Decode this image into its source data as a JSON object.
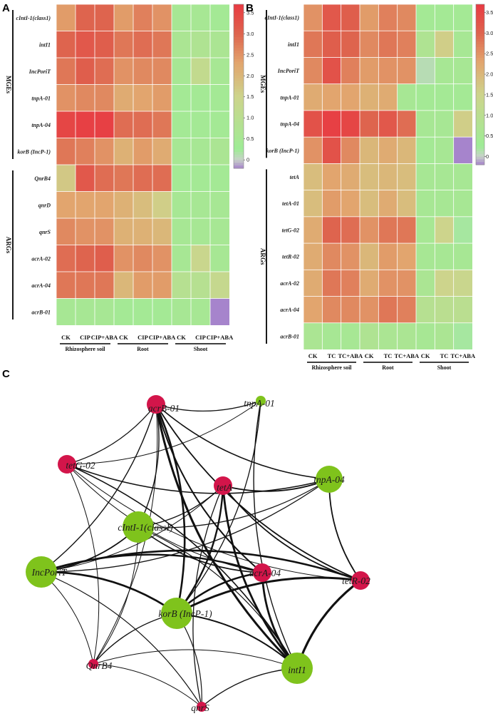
{
  "chart_data": [
    {
      "type": "heatmap",
      "panel_label": "A",
      "rows": [
        "cIntI-1(class1)",
        "intI1",
        "IncPoriT",
        "tnpA-01",
        "tnpA-04",
        "korB (IncP-1)",
        "QnrB4",
        "qnrD",
        "qnrS",
        "acrA-02",
        "acrA-04",
        "acrB-01"
      ],
      "columns": [
        "CK",
        "CIP",
        "CIP+ABA",
        "CK",
        "CIP",
        "CIP+ABA",
        "CK",
        "CIP",
        "CIP+ABA"
      ],
      "column_groups": [
        {
          "label": "Rhizosphere soil",
          "span": 3
        },
        {
          "label": "Root",
          "span": 3
        },
        {
          "label": "Shoot",
          "span": 3
        }
      ],
      "row_groups": [
        {
          "label": "MGEs",
          "span": 6
        },
        {
          "label": "ARGs",
          "span": 6
        }
      ],
      "values": [
        [
          2.4,
          3.0,
          3.0,
          2.4,
          2.7,
          2.5,
          0.5,
          0.5,
          0.4
        ],
        [
          3.0,
          3.2,
          3.1,
          2.8,
          2.9,
          2.8,
          0.6,
          0.7,
          0.6
        ],
        [
          2.8,
          3.1,
          2.9,
          2.5,
          2.6,
          2.6,
          0.5,
          1.2,
          0.5
        ],
        [
          2.5,
          2.6,
          2.6,
          2.2,
          2.3,
          2.4,
          0.4,
          0.4,
          0.4
        ],
        [
          3.5,
          3.6,
          3.6,
          2.9,
          2.9,
          2.8,
          0.4,
          0.4,
          0.4
        ],
        [
          2.8,
          2.7,
          2.5,
          2.1,
          2.4,
          2.2,
          0.5,
          0.5,
          0.6
        ],
        [
          1.7,
          3.2,
          2.9,
          2.8,
          2.9,
          2.9,
          0.4,
          0.4,
          0.4
        ],
        [
          2.3,
          2.3,
          2.3,
          2.1,
          1.9,
          1.6,
          0.5,
          0.5,
          0.5
        ],
        [
          2.6,
          2.5,
          2.5,
          2.1,
          2.1,
          2.0,
          0.5,
          0.5,
          0.5
        ],
        [
          2.9,
          3.0,
          3.1,
          2.5,
          2.6,
          2.5,
          0.5,
          1.4,
          0.5
        ],
        [
          2.8,
          2.8,
          2.8,
          2.0,
          2.4,
          2.4,
          0.9,
          0.9,
          1.3
        ],
        [
          0.5,
          0.5,
          0.5,
          0.4,
          0.4,
          0.4,
          0.5,
          0.5,
          -0.2
        ]
      ],
      "colorbar": {
        "min": -0.2,
        "max": 3.7,
        "ticks": [
          0,
          0.5,
          1.0,
          1.5,
          2.0,
          2.5,
          3.0,
          3.5
        ],
        "tick_labels": [
          "0",
          "0.5",
          "1.0",
          "1.5",
          "2.0",
          "2.5",
          "3.0",
          "3.5"
        ]
      }
    },
    {
      "type": "heatmap",
      "panel_label": "B",
      "rows": [
        "cIntI-1(class1)",
        "intI1",
        "IncPoriT",
        "tnpA-01",
        "tnpA-04",
        "korB (IncP-1)",
        "tetA",
        "tetA-01",
        "tetG-02",
        "tetR-02",
        "acrA-02",
        "acrA-04",
        "acrB-01"
      ],
      "columns": [
        "CK",
        "TC",
        "TC+ABA",
        "CK",
        "TC",
        "TC+ABA",
        "CK",
        "TC",
        "TC+ABA"
      ],
      "column_groups": [
        {
          "label": "Rhizosphere soil",
          "span": 3
        },
        {
          "label": "Root",
          "span": 3
        },
        {
          "label": "Shoot",
          "span": 3
        }
      ],
      "row_groups": [
        {
          "label": "MGEs",
          "span": 6
        },
        {
          "label": "ARGs",
          "span": 7
        }
      ],
      "values": [
        [
          2.5,
          3.2,
          3.1,
          2.4,
          2.7,
          2.6,
          0.4,
          0.4,
          0.4
        ],
        [
          2.8,
          3.1,
          3.0,
          2.6,
          2.8,
          2.7,
          0.7,
          1.6,
          0.5
        ],
        [
          2.6,
          3.3,
          2.7,
          2.4,
          2.5,
          2.5,
          0.1,
          0.5,
          0.5
        ],
        [
          2.2,
          2.3,
          2.3,
          2.1,
          2.2,
          0.5,
          0.4,
          0.4,
          0.4
        ],
        [
          3.3,
          3.6,
          3.5,
          3.0,
          3.2,
          2.9,
          0.5,
          0.5,
          1.6
        ],
        [
          2.5,
          3.3,
          2.6,
          2.0,
          2.2,
          2.0,
          0.4,
          0.5,
          -0.2
        ],
        [
          1.9,
          2.3,
          2.2,
          1.9,
          2.0,
          1.9,
          0.5,
          0.5,
          0.5
        ],
        [
          1.9,
          2.4,
          2.3,
          1.9,
          2.2,
          1.9,
          0.5,
          0.5,
          0.5
        ],
        [
          2.2,
          3.0,
          2.9,
          2.5,
          2.8,
          2.8,
          0.5,
          1.5,
          0.2
        ],
        [
          2.2,
          2.6,
          2.5,
          2.0,
          2.4,
          2.3,
          0.5,
          0.5,
          0.5
        ],
        [
          2.2,
          2.8,
          2.7,
          2.2,
          2.5,
          2.5,
          0.6,
          1.5,
          1.4
        ],
        [
          2.3,
          2.6,
          2.6,
          2.5,
          2.8,
          2.7,
          0.9,
          1.0,
          1.0
        ],
        [
          0.6,
          0.5,
          0.5,
          0.7,
          0.6,
          0.6,
          0.5,
          0.6,
          0.2
        ]
      ],
      "colorbar": {
        "min": -0.2,
        "max": 3.7,
        "ticks": [
          0,
          0.5,
          1.0,
          1.5,
          2.0,
          2.5,
          3.0,
          3.5
        ],
        "tick_labels": [
          "0",
          "0.5",
          "1.0",
          "1.5",
          "2.0",
          "2.5",
          "3.0",
          "3.5"
        ]
      }
    },
    {
      "type": "network",
      "panel_label": "C",
      "category_colors": {
        "ARG": "#d3154a",
        "MGE": "#7fc31c"
      },
      "nodes": [
        {
          "id": "acrB-01",
          "label": "acrB-01",
          "category": "ARG",
          "weight": 2
        },
        {
          "id": "tnpA-01",
          "label": "tnpA-01",
          "category": "MGE",
          "weight": 1
        },
        {
          "id": "tetG-02",
          "label": "tetG-02",
          "category": "ARG",
          "weight": 2
        },
        {
          "id": "tetA",
          "label": "tetA",
          "category": "ARG",
          "weight": 2
        },
        {
          "id": "tnpA-04",
          "label": "tnpA-04",
          "category": "MGE",
          "weight": 3
        },
        {
          "id": "cIntI-1",
          "label": "cIntI-1(classI)",
          "category": "MGE",
          "weight": 4
        },
        {
          "id": "IncPoriT",
          "label": "IncPoriT",
          "category": "MGE",
          "weight": 4
        },
        {
          "id": "acrA-04",
          "label": "acrA-04",
          "category": "ARG",
          "weight": 2
        },
        {
          "id": "tetR-02",
          "label": "tetR-02",
          "category": "ARG",
          "weight": 2
        },
        {
          "id": "korB",
          "label": "korB (IncP-1)",
          "category": "MGE",
          "weight": 4
        },
        {
          "id": "QnrB4",
          "label": "QnrB4",
          "category": "ARG",
          "weight": 1
        },
        {
          "id": "intI1",
          "label": "intI1",
          "category": "MGE",
          "weight": 4
        },
        {
          "id": "qnrS",
          "label": "qnrS",
          "category": "ARG",
          "weight": 1
        }
      ],
      "edges": [
        [
          "acrB-01",
          "tnpA-01",
          1.3
        ],
        [
          "acrB-01",
          "tnpA-04",
          1.6
        ],
        [
          "acrB-01",
          "tetR-02",
          1.8
        ],
        [
          "acrB-01",
          "intI1",
          3.0
        ],
        [
          "acrB-01",
          "korB",
          2.6
        ],
        [
          "acrB-01",
          "IncPoriT",
          1.4
        ],
        [
          "acrB-01",
          "tetG-02",
          1.3
        ],
        [
          "acrB-01",
          "QnrB4",
          1.0
        ],
        [
          "acrB-01",
          "cIntI-1",
          1.4
        ],
        [
          "acrB-01",
          "acrA-04",
          2.0
        ],
        [
          "tnpA-01",
          "tetG-02",
          1.0
        ],
        [
          "tnpA-01",
          "korB",
          1.3
        ],
        [
          "tnpA-01",
          "intI1",
          1.4
        ],
        [
          "tetG-02",
          "tnpA-04",
          1.6
        ],
        [
          "tetG-02",
          "acrA-04",
          1.0
        ],
        [
          "tetG-02",
          "tetR-02",
          1.0
        ],
        [
          "tetG-02",
          "intI1",
          1.6
        ],
        [
          "tetG-02",
          "QnrB4",
          1.0
        ],
        [
          "tetA",
          "tnpA-04",
          1.8
        ],
        [
          "tetA",
          "korB",
          2.4
        ],
        [
          "tetA",
          "intI1",
          2.8
        ],
        [
          "tetA",
          "IncPoriT",
          1.0
        ],
        [
          "tetA",
          "qnrS",
          1.3
        ],
        [
          "tetA",
          "cIntI-1",
          1.3
        ],
        [
          "tetA",
          "tetR-02",
          1.8
        ],
        [
          "tnpA-04",
          "tetR-02",
          1.8
        ],
        [
          "tnpA-04",
          "cIntI-1",
          1.2
        ],
        [
          "tnpA-04",
          "IncPoriT",
          1.3
        ],
        [
          "cIntI-1",
          "IncPoriT",
          1.8
        ],
        [
          "cIntI-1",
          "acrA-04",
          1.6
        ],
        [
          "cIntI-1",
          "intI1",
          1.2
        ],
        [
          "cIntI-1",
          "QnrB4",
          1.0
        ],
        [
          "IncPoriT",
          "korB",
          2.8
        ],
        [
          "IncPoriT",
          "tetR-02",
          2.6
        ],
        [
          "IncPoriT",
          "acrA-04",
          2.4
        ],
        [
          "IncPoriT",
          "QnrB4",
          1.0
        ],
        [
          "IncPoriT",
          "qnrS",
          1.2
        ],
        [
          "acrA-04",
          "korB",
          2.4
        ],
        [
          "acrA-04",
          "intI1",
          2.8
        ],
        [
          "tetR-02",
          "korB",
          3.0
        ],
        [
          "tetR-02",
          "intI1",
          3.2
        ],
        [
          "korB",
          "QnrB4",
          1.4
        ],
        [
          "korB",
          "qnrS",
          1.2
        ],
        [
          "korB",
          "intI1",
          2.0
        ],
        [
          "QnrB4",
          "intI1",
          1.0
        ],
        [
          "QnrB4",
          "qnrS",
          1.0
        ],
        [
          "qnrS",
          "intI1",
          1.4
        ]
      ]
    }
  ]
}
